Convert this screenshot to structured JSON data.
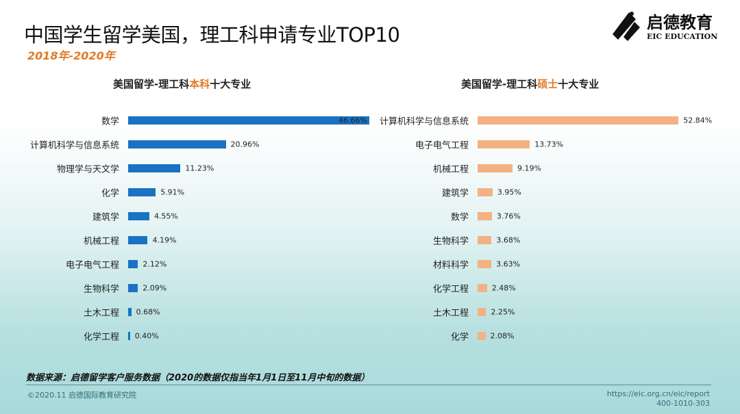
{
  "header": {
    "title": "中国学生留学美国，理工科申请专业TOP10",
    "subtitle": "2018年-2020年",
    "logo_cn": "启德教育",
    "logo_en": "EIC EDUCATION"
  },
  "chart_data": [
    {
      "type": "bar",
      "orientation": "horizontal",
      "title_prefix": "美国留学-理工科",
      "title_highlight": "本科",
      "title_suffix": "十大专业",
      "color": "#1a72c2",
      "categories": [
        "数学",
        "计算机科学与信息系统",
        "物理学与天文学",
        "化学",
        "建筑学",
        "机械工程",
        "电子电气工程",
        "生物科学",
        "土木工程",
        "化学工程"
      ],
      "values": [
        46.66,
        20.96,
        11.23,
        5.91,
        4.55,
        4.19,
        2.12,
        2.09,
        0.68,
        0.4
      ],
      "labels": [
        "46.66%",
        "20.96%",
        "11.23%",
        "5.91%",
        "4.55%",
        "4.19%",
        "2.12%",
        "2.09%",
        "0.68%",
        "0.40%"
      ],
      "unit": "%"
    },
    {
      "type": "bar",
      "orientation": "horizontal",
      "title_prefix": "美国留学-理工科",
      "title_highlight": "硕士",
      "title_suffix": "十大专业",
      "color": "#f4b183",
      "categories": [
        "计算机科学与信息系统",
        "电子电气工程",
        "机械工程",
        "建筑学",
        "数学",
        "生物科学",
        "材料科学",
        "化学工程",
        "土木工程",
        "化学"
      ],
      "values": [
        52.84,
        13.73,
        9.19,
        3.95,
        3.76,
        3.68,
        3.63,
        2.48,
        2.25,
        2.08
      ],
      "labels": [
        "52.84%",
        "13.73%",
        "9.19%",
        "3.95%",
        "3.76%",
        "3.68%",
        "3.63%",
        "2.48%",
        "2.25%",
        "2.08%"
      ],
      "unit": "%"
    }
  ],
  "footer": {
    "source": "数据来源：启德留学客户服务数据（2020的数据仅指当年1月1日至11月中旬的数据）",
    "copyright": "©2020.11 启德国际教育研究院",
    "url": "https://eic.org.cn/eic/report",
    "phone": "400-1010-303"
  }
}
